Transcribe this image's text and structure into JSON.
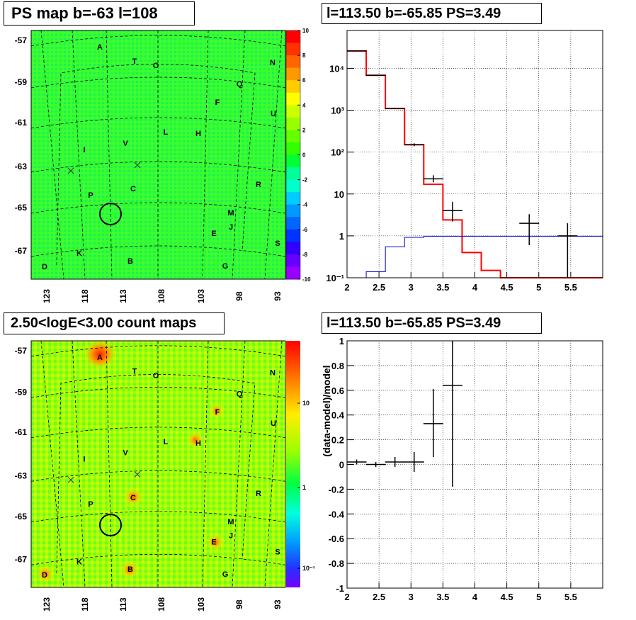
{
  "panels": {
    "ps_map": {
      "title": "PS map b=-63 l=108",
      "lat_ticks": [
        "-57",
        "-59",
        "-61",
        "-63",
        "-65",
        "-67"
      ],
      "lon_ticks": [
        "123",
        "118",
        "113",
        "108",
        "103",
        "98",
        "93"
      ],
      "colorbar_ticks": [
        "10",
        "8",
        "6",
        "4",
        "2",
        "0",
        "-2",
        "-4",
        "-6",
        "-8",
        "-10"
      ],
      "colorbar_colors": [
        "#ff0000",
        "#ff3300",
        "#ff6600",
        "#ff9900",
        "#ffcc00",
        "#ffff00",
        "#ccff00",
        "#99ff00",
        "#66ff00",
        "#33ff00",
        "#00ff33",
        "#00ff99",
        "#00ffcc",
        "#00ccff",
        "#0099ff",
        "#0066ff",
        "#0033ff",
        "#3300ff",
        "#6600ff",
        "#9900ff"
      ],
      "sources": [
        {
          "label": "A"
        },
        {
          "label": "T"
        },
        {
          "label": "O"
        },
        {
          "label": "N"
        },
        {
          "label": "Q"
        },
        {
          "label": "F"
        },
        {
          "label": "U"
        },
        {
          "label": "L"
        },
        {
          "label": "H"
        },
        {
          "label": "I"
        },
        {
          "label": "V"
        },
        {
          "label": "C"
        },
        {
          "label": "R"
        },
        {
          "label": "P"
        },
        {
          "label": "M"
        },
        {
          "label": "J"
        },
        {
          "label": "E"
        },
        {
          "label": "S"
        },
        {
          "label": "K"
        },
        {
          "label": "B"
        },
        {
          "label": "G"
        },
        {
          "label": "D"
        }
      ]
    },
    "spectrum": {
      "title": "l=113.50 b=-65.85 PS=3.49",
      "x_ticks": [
        "2",
        "2.5",
        "3",
        "3.5",
        "4",
        "4.5",
        "5",
        "5.5"
      ],
      "y_ticks": [
        "10⁻¹",
        "1",
        "10",
        "10²",
        "10³",
        "10⁴"
      ]
    },
    "count_map": {
      "title": "2.50<logE<3.00 count maps",
      "colorbar_ticks": [
        "10",
        "1",
        "10⁻¹"
      ]
    },
    "residual": {
      "title": "l=113.50 b=-65.85 PS=3.49",
      "ylabel": "(data-model)/model",
      "x_ticks": [
        "2",
        "2.5",
        "3",
        "3.5",
        "4",
        "4.5",
        "5",
        "5.5"
      ],
      "y_ticks": [
        "1",
        "0.8",
        "0.6",
        "0.4",
        "0.2",
        "0",
        "-0.2",
        "-0.4",
        "-0.6",
        "-0.8",
        "-1"
      ]
    }
  },
  "chart_data": [
    {
      "type": "line",
      "series": [
        {
          "color": "#ff0000",
          "values": [
            [
              2.0,
              2.6,
              26000
            ],
            [
              2.3,
              2.6,
              6800
            ],
            [
              2.6,
              2.9,
              1100
            ],
            [
              2.9,
              3.2,
              150
            ],
            [
              3.2,
              3.5,
              17
            ],
            [
              3.5,
              3.8,
              2.4
            ],
            [
              3.8,
              4.1,
              0.4
            ],
            [
              4.1,
              4.4,
              0.15
            ],
            [
              4.4,
              6.0,
              0.1
            ]
          ]
        },
        {
          "color": "#0000cc",
          "values": [
            [
              2.0,
              2.3,
              0.1
            ],
            [
              2.3,
              2.6,
              0.14
            ],
            [
              2.6,
              2.9,
              0.55
            ],
            [
              2.9,
              3.2,
              0.92
            ],
            [
              3.2,
              6.0,
              0.98
            ]
          ]
        }
      ],
      "points": [
        {
          "x": 2.15,
          "y": 26000,
          "lo": 25500,
          "hi": 26500
        },
        {
          "x": 2.45,
          "y": 6800,
          "lo": 6650,
          "hi": 6950
        },
        {
          "x": 2.75,
          "y": 1100,
          "lo": 1060,
          "hi": 1140
        },
        {
          "x": 3.05,
          "y": 150,
          "lo": 138,
          "hi": 162
        },
        {
          "x": 3.35,
          "y": 23,
          "lo": 19,
          "hi": 28
        },
        {
          "x": 3.65,
          "y": 4,
          "lo": 2.2,
          "hi": 6.5
        },
        {
          "x": 4.85,
          "y": 2,
          "lo": 0.6,
          "hi": 3.3
        },
        {
          "x": 5.45,
          "y": 1,
          "lo": 0.1,
          "hi": 2
        }
      ],
      "xlim": [
        2,
        6
      ],
      "ylim": [
        0.1,
        80000
      ],
      "log_y": true,
      "grid": true
    },
    {
      "type": "scatter",
      "points": [
        {
          "x": 2.15,
          "y": 0.02,
          "lo": 0.0,
          "hi": 0.04
        },
        {
          "x": 2.45,
          "y": 0.0,
          "lo": -0.02,
          "hi": 0.02
        },
        {
          "x": 2.75,
          "y": 0.02,
          "lo": -0.02,
          "hi": 0.06
        },
        {
          "x": 3.05,
          "y": 0.02,
          "lo": -0.06,
          "hi": 0.1
        },
        {
          "x": 3.35,
          "y": 0.33,
          "lo": 0.06,
          "hi": 0.61
        },
        {
          "x": 3.65,
          "y": 0.64,
          "lo": -0.18,
          "hi": 1.0
        }
      ],
      "xlim": [
        2,
        6
      ],
      "ylim": [
        -1,
        1
      ],
      "grid": true
    }
  ]
}
